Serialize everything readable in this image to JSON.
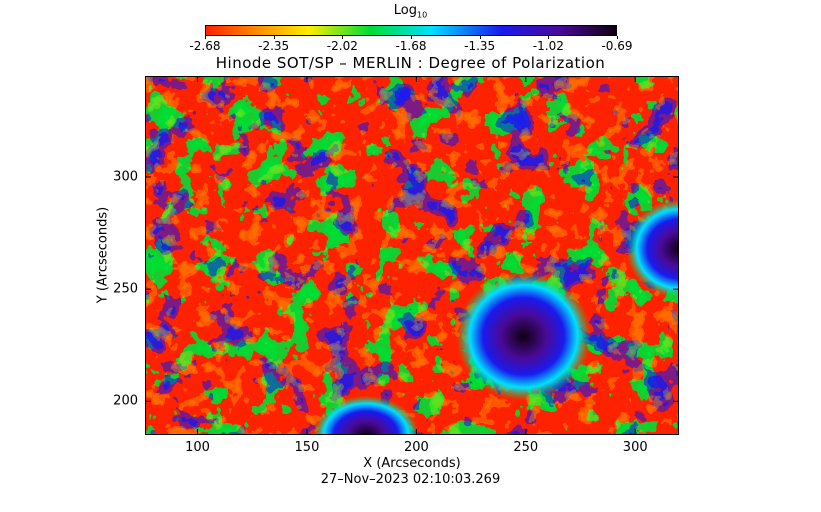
{
  "colorbar": {
    "label": "Log",
    "label_sub": "10",
    "ticks": [
      "-2.68",
      "-2.35",
      "-2.02",
      "-1.68",
      "-1.35",
      "-1.02",
      "-0.69"
    ],
    "range": [
      -2.68,
      -0.69
    ],
    "colormap": "rainbow (red → yellow → green → cyan → blue → purple → black)"
  },
  "chart_data": {
    "type": "heatmap",
    "title": "Hinode SOT/SP – MERLIN : Degree of Polarization",
    "xlabel": "X (Arcseconds)",
    "ylabel": "Y (Arcseconds)",
    "xlim": [
      76,
      320
    ],
    "ylim": [
      185,
      345
    ],
    "x_ticks": [
      100,
      150,
      200,
      250,
      300
    ],
    "y_ticks": [
      200,
      250,
      300
    ],
    "value_scale": "log10",
    "value_range": [
      -2.68,
      -0.69
    ],
    "features": [
      {
        "x": 249,
        "y": 229,
        "rx": 14,
        "ry": 13,
        "kind": "spot",
        "value": -0.75
      },
      {
        "x": 320,
        "y": 268,
        "rx": 11,
        "ry": 10,
        "kind": "spot",
        "value": -0.8
      },
      {
        "x": 177,
        "y": 185,
        "rx": 11,
        "ry": 8,
        "kind": "spot",
        "value": -0.85
      }
    ]
  },
  "timestamp": "27–Nov–2023 02:10:03.269",
  "colors": {
    "red": "#ff2200",
    "orange": "#ff8800",
    "yellow": "#ffee00",
    "green": "#00dd33",
    "cyan": "#00e0ff",
    "blue": "#1a1aee",
    "purple": "#4a0a9a",
    "black": "#100010"
  }
}
